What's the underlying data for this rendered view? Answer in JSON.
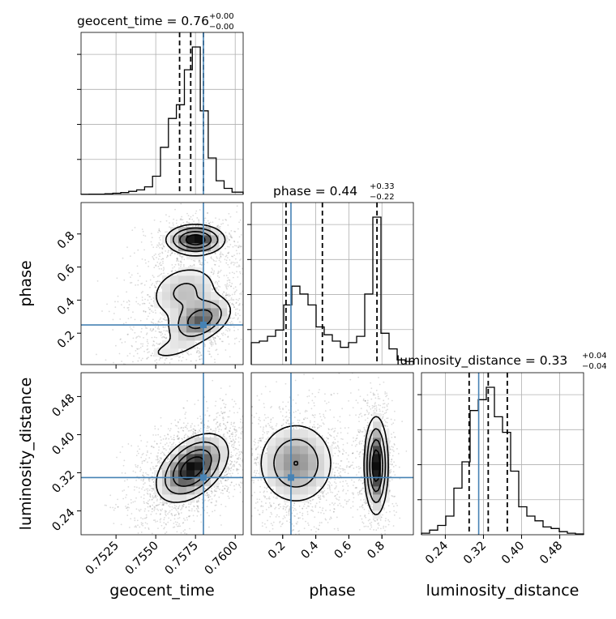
{
  "chart_data": {
    "type": "corner",
    "parameters": [
      "geocent_time",
      "phase",
      "luminosity_distance"
    ],
    "truths": {
      "geocent_time": 0.758,
      "phase": 0.25,
      "luminosity_distance": 0.31
    },
    "ranges": {
      "geocent_time": [
        0.7503,
        0.7605
      ],
      "phase": [
        0.01,
        0.99
      ],
      "luminosity_distance": [
        0.19,
        0.53
      ]
    },
    "ticks": {
      "geocent_time": [
        "0.7525",
        "0.7550",
        "0.7575",
        "0.7600"
      ],
      "phase": [
        "0.2",
        "0.4",
        "0.6",
        "0.8"
      ],
      "luminosity_distance": [
        "0.24",
        "0.32",
        "0.40",
        "0.48"
      ]
    },
    "titles": {
      "geocent_time": {
        "label": "geocent_time = 0.76",
        "plus": "+0.00",
        "minus": "−0.00"
      },
      "phase": {
        "label": "phase = 0.44",
        "plus": "+0.33",
        "minus": "−0.22"
      },
      "luminosity_distance": {
        "label": "luminosity_distance = 0.33",
        "plus": "+0.04",
        "minus": "−0.04"
      }
    },
    "quantiles": {
      "geocent_time": [
        0.7565,
        0.7572,
        0.758
      ],
      "phase": [
        0.22,
        0.44,
        0.77
      ],
      "luminosity_distance": [
        0.29,
        0.33,
        0.37
      ]
    },
    "histograms": {
      "geocent_time": {
        "edges": [
          0.7503,
          0.7508,
          0.7513,
          0.7518,
          0.7523,
          0.7528,
          0.7533,
          0.7538,
          0.7543,
          0.7548,
          0.7553,
          0.7558,
          0.7563,
          0.7568,
          0.7573,
          0.7578,
          0.7583,
          0.7588,
          0.7593,
          0.7598,
          0.7605
        ],
        "counts": [
          0.001,
          0.002,
          0.002,
          0.004,
          0.008,
          0.012,
          0.02,
          0.03,
          0.05,
          0.12,
          0.31,
          0.5,
          0.59,
          0.82,
          0.97,
          0.55,
          0.24,
          0.09,
          0.04,
          0.015
        ]
      },
      "phase": {
        "edges": [
          0.01,
          0.059,
          0.108,
          0.157,
          0.206,
          0.255,
          0.304,
          0.353,
          0.402,
          0.451,
          0.5,
          0.549,
          0.598,
          0.647,
          0.696,
          0.745,
          0.794,
          0.843,
          0.892,
          0.941,
          0.99
        ],
        "counts": [
          0.14,
          0.15,
          0.18,
          0.22,
          0.38,
          0.5,
          0.45,
          0.38,
          0.24,
          0.19,
          0.15,
          0.11,
          0.14,
          0.18,
          0.45,
          0.94,
          0.2,
          0.1,
          0.03,
          0.02
        ]
      },
      "luminosity_distance": {
        "edges": [
          0.19,
          0.207,
          0.224,
          0.241,
          0.258,
          0.275,
          0.292,
          0.309,
          0.326,
          0.343,
          0.36,
          0.377,
          0.394,
          0.411,
          0.428,
          0.445,
          0.462,
          0.479,
          0.496,
          0.513,
          0.53
        ],
        "counts": [
          0.01,
          0.03,
          0.06,
          0.12,
          0.3,
          0.47,
          0.8,
          0.87,
          0.95,
          0.76,
          0.66,
          0.41,
          0.18,
          0.12,
          0.09,
          0.05,
          0.04,
          0.02,
          0.01,
          0.005
        ]
      }
    },
    "densities": {
      "phase_vs_geocent_time": [
        {
          "x": 0.7575,
          "y": 0.765,
          "sx": 0.0009,
          "sy": 0.045,
          "w": 1.0,
          "rho": 0.0
        },
        {
          "x": 0.7578,
          "y": 0.28,
          "sx": 0.001,
          "sy": 0.07,
          "w": 0.7,
          "rho": 0.4
        },
        {
          "x": 0.7568,
          "y": 0.45,
          "sx": 0.0012,
          "sy": 0.09,
          "w": 0.35,
          "rho": 0.2
        },
        {
          "x": 0.756,
          "y": 0.1,
          "sx": 0.0012,
          "sy": 0.05,
          "w": 0.15,
          "rho": 0.5
        }
      ],
      "luminosity_distance_vs_geocent_time": [
        {
          "x": 0.7573,
          "y": 0.33,
          "sx": 0.0011,
          "sy": 0.035,
          "w": 1.0,
          "rho": 0.45
        }
      ],
      "luminosity_distance_vs_phase": [
        {
          "x": 0.28,
          "y": 0.34,
          "sx": 0.12,
          "sy": 0.045,
          "w": 0.55,
          "rho": 0.0
        },
        {
          "x": 0.765,
          "y": 0.335,
          "sx": 0.035,
          "sy": 0.05,
          "w": 1.0,
          "rho": 0.0
        }
      ]
    }
  }
}
